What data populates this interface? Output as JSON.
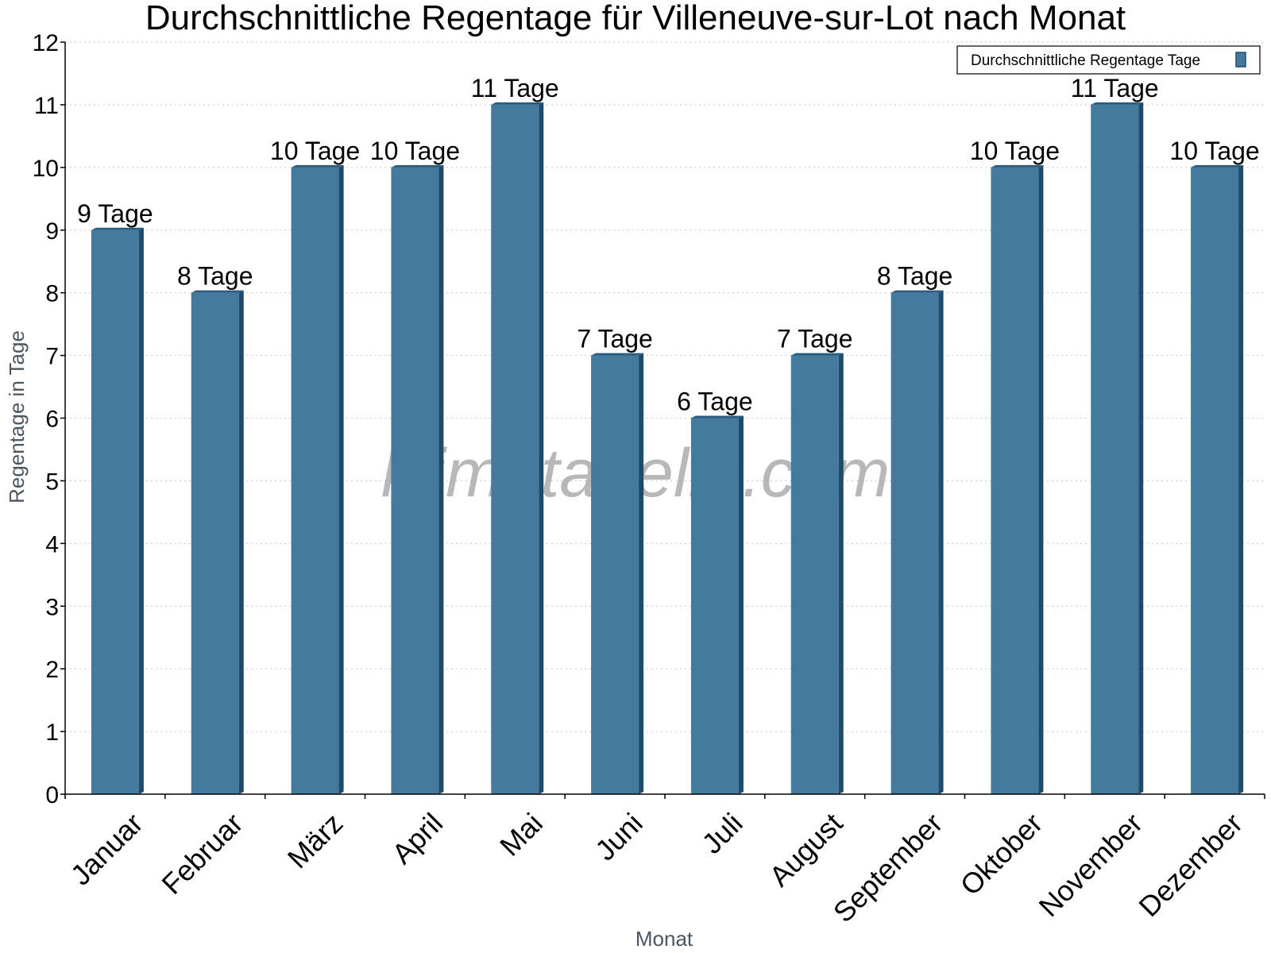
{
  "chart_data": {
    "type": "bar",
    "title": "Durchschnittliche Regentage für Villeneuve-sur-Lot nach Monat",
    "xlabel": "Monat",
    "ylabel": "Regentage in Tage",
    "categories": [
      "Januar",
      "Februar",
      "März",
      "April",
      "Mai",
      "Juni",
      "Juli",
      "August",
      "September",
      "Oktober",
      "November",
      "Dezember"
    ],
    "series": [
      {
        "name": "Durchschnittliche Regentage Tage",
        "values": [
          9,
          8,
          10,
          10,
          11,
          7,
          6,
          7,
          8,
          10,
          11,
          10
        ],
        "data_labels": [
          "9 Tage",
          "8 Tage",
          "10 Tage",
          "10 Tage",
          "11 Tage",
          "7 Tage",
          "6 Tage",
          "7 Tage",
          "8 Tage",
          "10 Tage",
          "11 Tage",
          "10 Tage"
        ]
      }
    ],
    "ylim": [
      0,
      12
    ],
    "yticks": [
      0,
      1,
      2,
      3,
      4,
      5,
      6,
      7,
      8,
      9,
      10,
      11,
      12
    ],
    "grid": true,
    "legend_position": "top-right",
    "colors": {
      "bar_front": "#447a9d",
      "bar_side": "#1e4a6b",
      "bar_top": "#2a5a7c",
      "grid": "#c8c8c8",
      "axis": "#000000"
    },
    "watermark": "klimatabelle.com"
  }
}
